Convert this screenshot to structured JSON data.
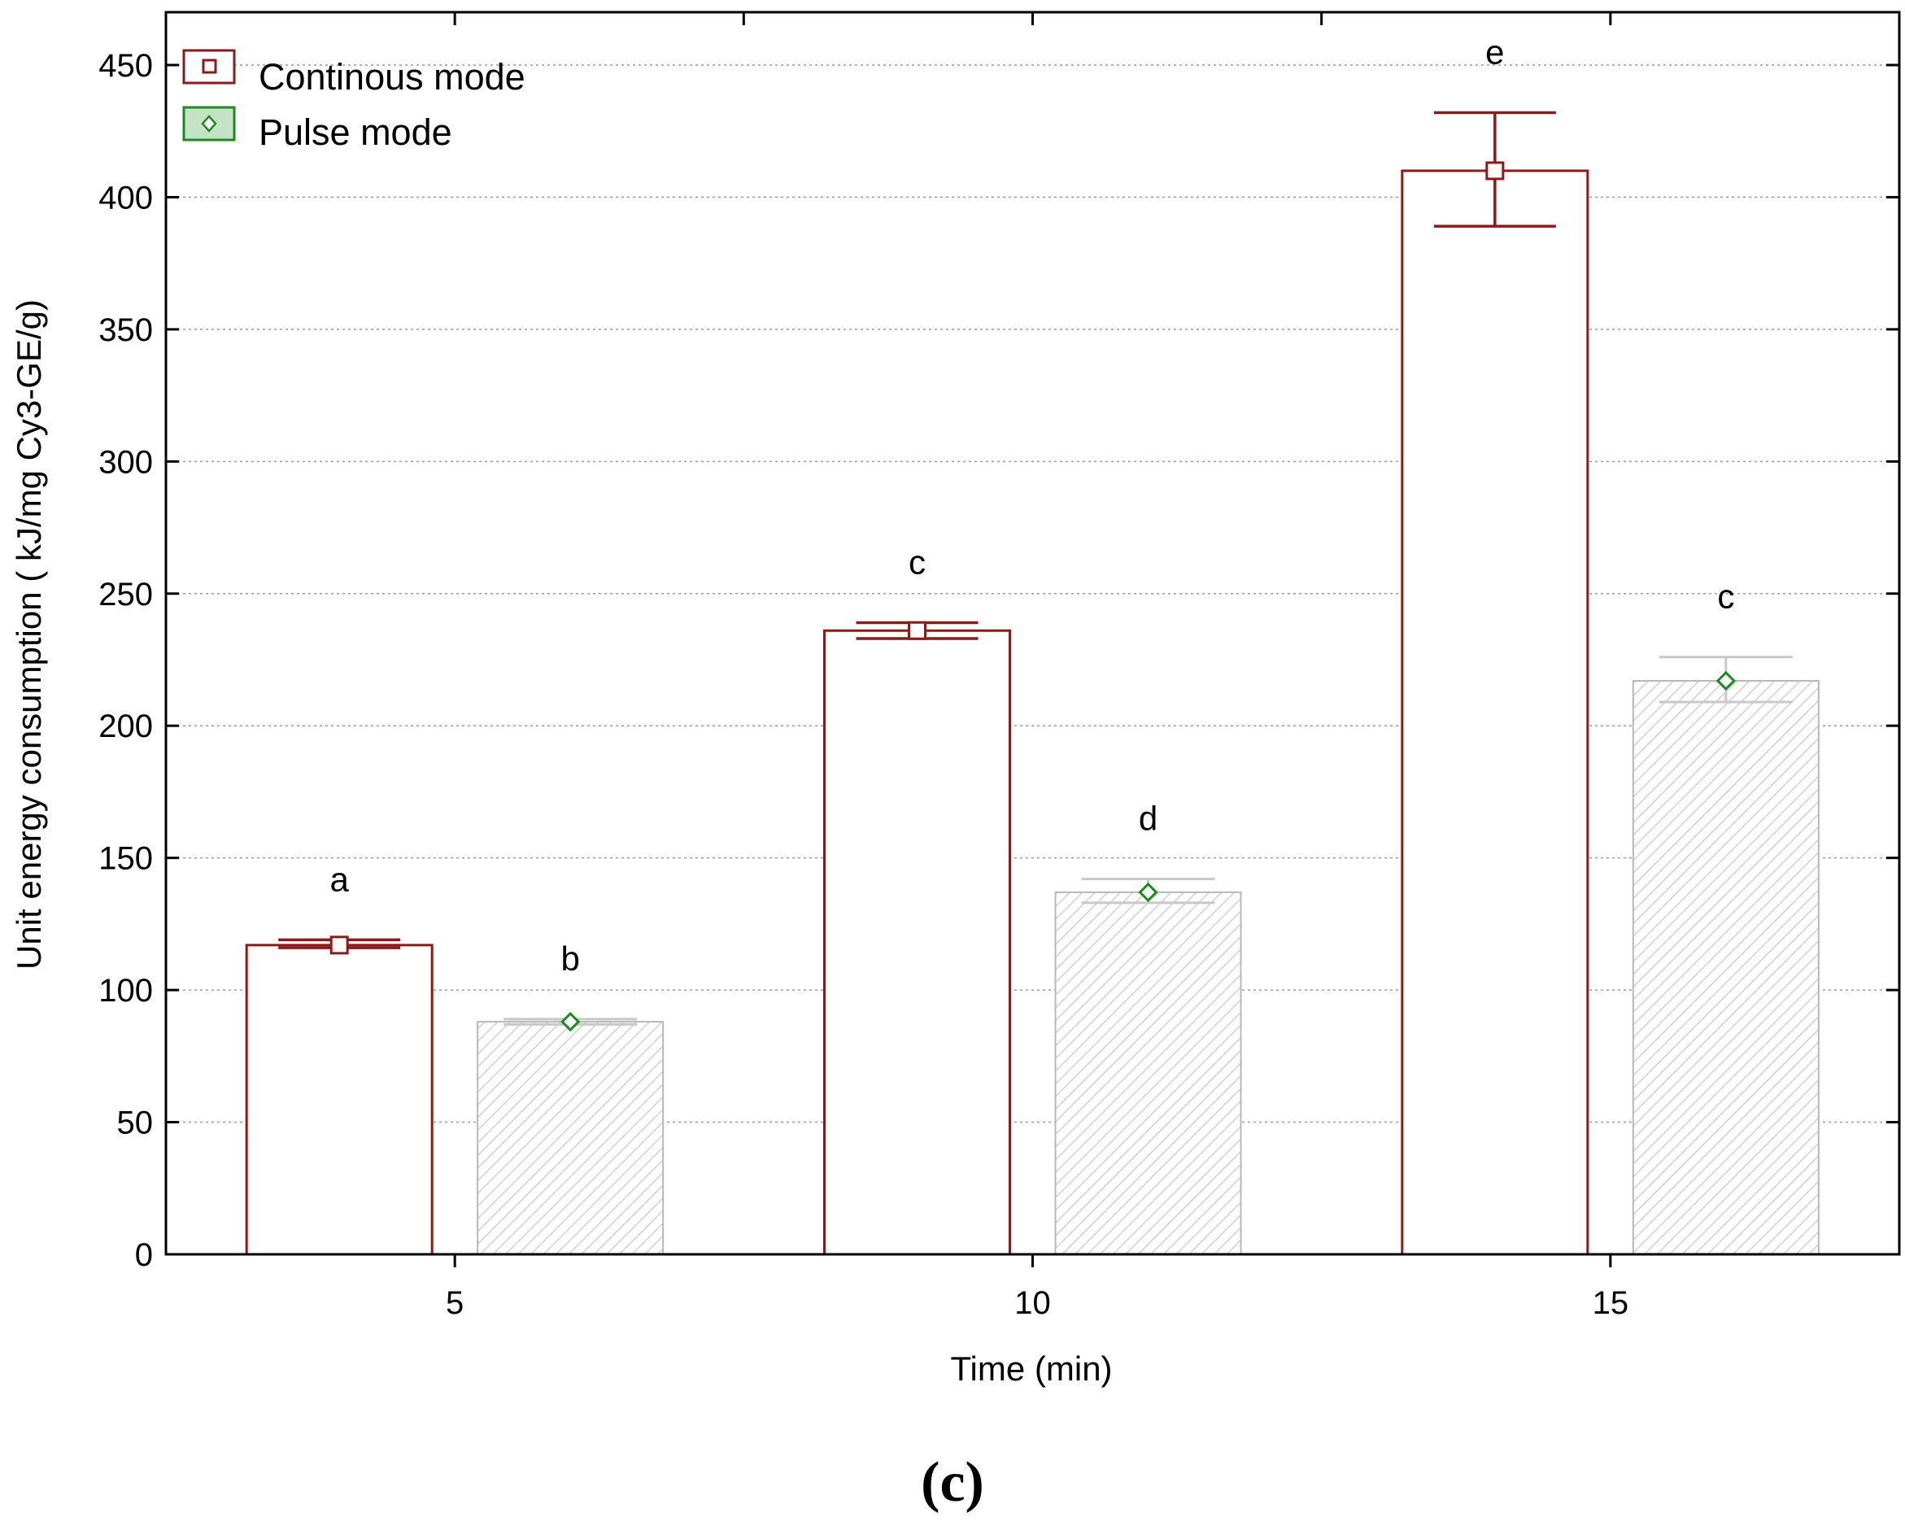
{
  "chart_data": {
    "type": "bar",
    "title": "",
    "xlabel": "Time (min)",
    "ylabel": "Unit energy consumption ( kJ/mg Cy3-GE/g)",
    "categories": [
      "5",
      "10",
      "15"
    ],
    "ylim": [
      0,
      470
    ],
    "yticks": [
      0,
      50,
      100,
      150,
      200,
      250,
      300,
      350,
      400,
      450
    ],
    "ytick_labels": [
      "0",
      "50",
      "100",
      "150",
      "200",
      "250",
      "300",
      "350",
      "400",
      "450"
    ],
    "grid": true,
    "legend_position": "top-left",
    "series": [
      {
        "name": "Continous mode",
        "color": "#8b1a1a",
        "fill": "#ffffff",
        "marker": "square",
        "values": [
          117,
          236,
          410
        ],
        "error_low": [
          116,
          233,
          389
        ],
        "error_high": [
          119,
          239,
          432
        ],
        "letters": [
          "a",
          "c",
          "e"
        ]
      },
      {
        "name": "Pulse mode",
        "color": "#b8b8b8",
        "marker_color": "#1e8a1e",
        "fill": "hatched",
        "marker": "diamond",
        "values": [
          88,
          137,
          217
        ],
        "error_low": [
          87,
          133,
          209
        ],
        "error_high": [
          89,
          142,
          226
        ],
        "letters": [
          "b",
          "d",
          "c"
        ]
      }
    ],
    "panel_label": "(c)"
  }
}
